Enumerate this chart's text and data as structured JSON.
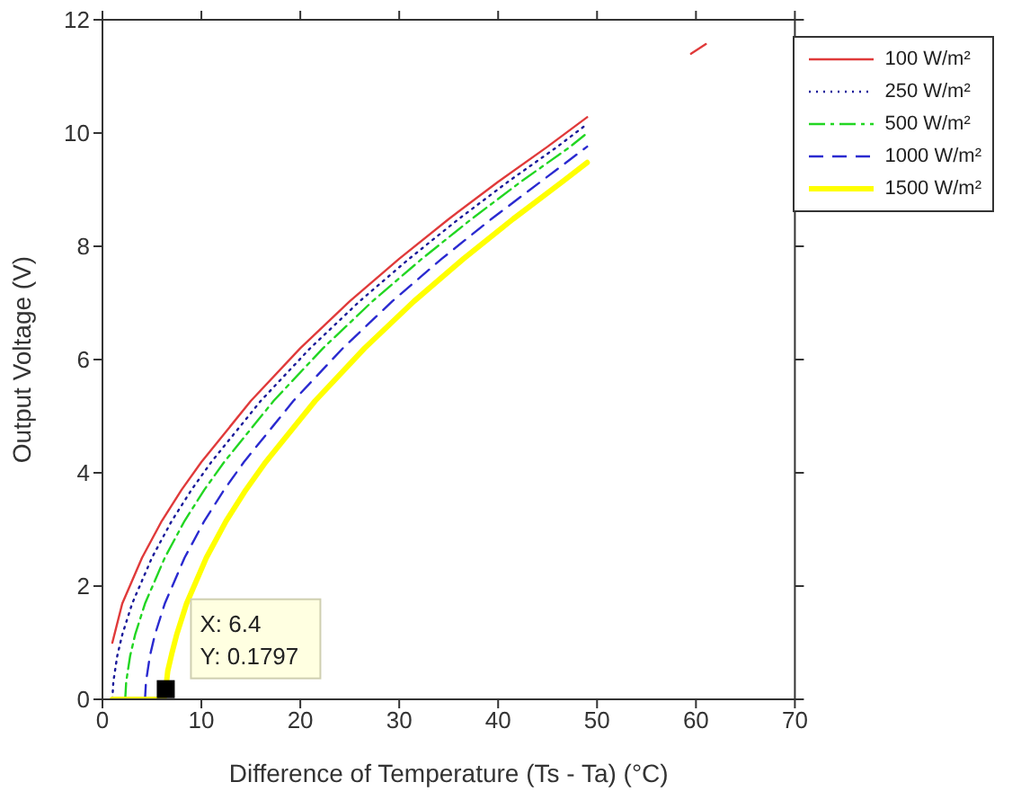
{
  "chart_data": {
    "type": "line",
    "xlabel": "Difference of Temperature (Ts - Ta) (°C)",
    "ylabel": "Output Voltage (V)",
    "xlim": [
      0,
      70
    ],
    "xticks": [
      0,
      10,
      20,
      30,
      40,
      50,
      60,
      70
    ],
    "ylim": [
      0,
      12
    ],
    "yticks": [
      0,
      2,
      4,
      6,
      8,
      10,
      12
    ],
    "grid": false,
    "legend": "top right",
    "marker": "none",
    "annotations": [
      {
        "text": "X: 6.4\nY: 0.1797",
        "x": 6.4,
        "y": 0.1797
      }
    ],
    "series": [
      {
        "name": "100 W/m²",
        "color": "#e03a3a",
        "line_style": "solid",
        "x": [
          1,
          2,
          4,
          6,
          8,
          10,
          15,
          20,
          25,
          30,
          35,
          40,
          45,
          49,
          50,
          59.5,
          61
        ],
        "values": [
          1.0,
          1.69,
          2.5,
          3.15,
          3.7,
          4.19,
          5.27,
          6.2,
          7.03,
          7.78,
          8.48,
          9.14,
          9.76,
          10.28,
          null,
          11.4,
          11.57
        ]
      },
      {
        "name": "250 W/m²",
        "color": "#1a1a9a",
        "line_style": "dotted",
        "x": [
          1,
          1.1,
          1.5,
          2,
          3,
          5,
          7,
          9,
          11,
          16,
          21,
          26,
          31,
          36,
          41,
          46,
          49
        ],
        "values": [
          0,
          0.31,
          0.77,
          1.14,
          1.69,
          2.5,
          3.15,
          3.7,
          4.19,
          5.27,
          6.2,
          7.03,
          7.78,
          8.48,
          9.14,
          9.76,
          10.16
        ]
      },
      {
        "name": "500 W/m²",
        "color": "#22d622",
        "line_style": "dashdot",
        "x": [
          2.3,
          2.4,
          2.8,
          3.3,
          4.3,
          6.3,
          8.3,
          10.3,
          12.3,
          17.3,
          22.3,
          27.3,
          32.3,
          37.3,
          42.3,
          47.3,
          49
        ],
        "values": [
          0,
          0.31,
          0.77,
          1.14,
          1.69,
          2.5,
          3.15,
          3.7,
          4.19,
          5.27,
          6.2,
          7.03,
          7.78,
          8.48,
          9.14,
          9.76,
          10.0
        ]
      },
      {
        "name": "1000 W/m²",
        "color": "#2a2ad0",
        "line_style": "dashed",
        "x": [
          4.3,
          4.4,
          4.8,
          5.3,
          6.3,
          8.3,
          10.3,
          12.3,
          14.3,
          19.3,
          24.3,
          29.3,
          34.3,
          39.3,
          44.3,
          49
        ],
        "values": [
          0,
          0.31,
          0.77,
          1.14,
          1.69,
          2.5,
          3.15,
          3.7,
          4.19,
          5.27,
          6.2,
          7.03,
          7.78,
          8.48,
          9.14,
          9.76
        ]
      },
      {
        "name": "1500 W/m²",
        "color": "#ffff00",
        "line_style": "solid",
        "x": [
          1,
          6.2,
          6.4,
          6.6,
          7,
          7.5,
          8.5,
          10.5,
          12.5,
          14.5,
          16.5,
          21.5,
          26.5,
          31.5,
          36.5,
          41.5,
          46.5,
          49
        ],
        "values": [
          0,
          0,
          0.18,
          0.5,
          0.8,
          1.14,
          1.69,
          2.5,
          3.15,
          3.7,
          4.19,
          5.27,
          6.2,
          7.03,
          7.78,
          8.48,
          9.14,
          9.48
        ]
      }
    ]
  }
}
